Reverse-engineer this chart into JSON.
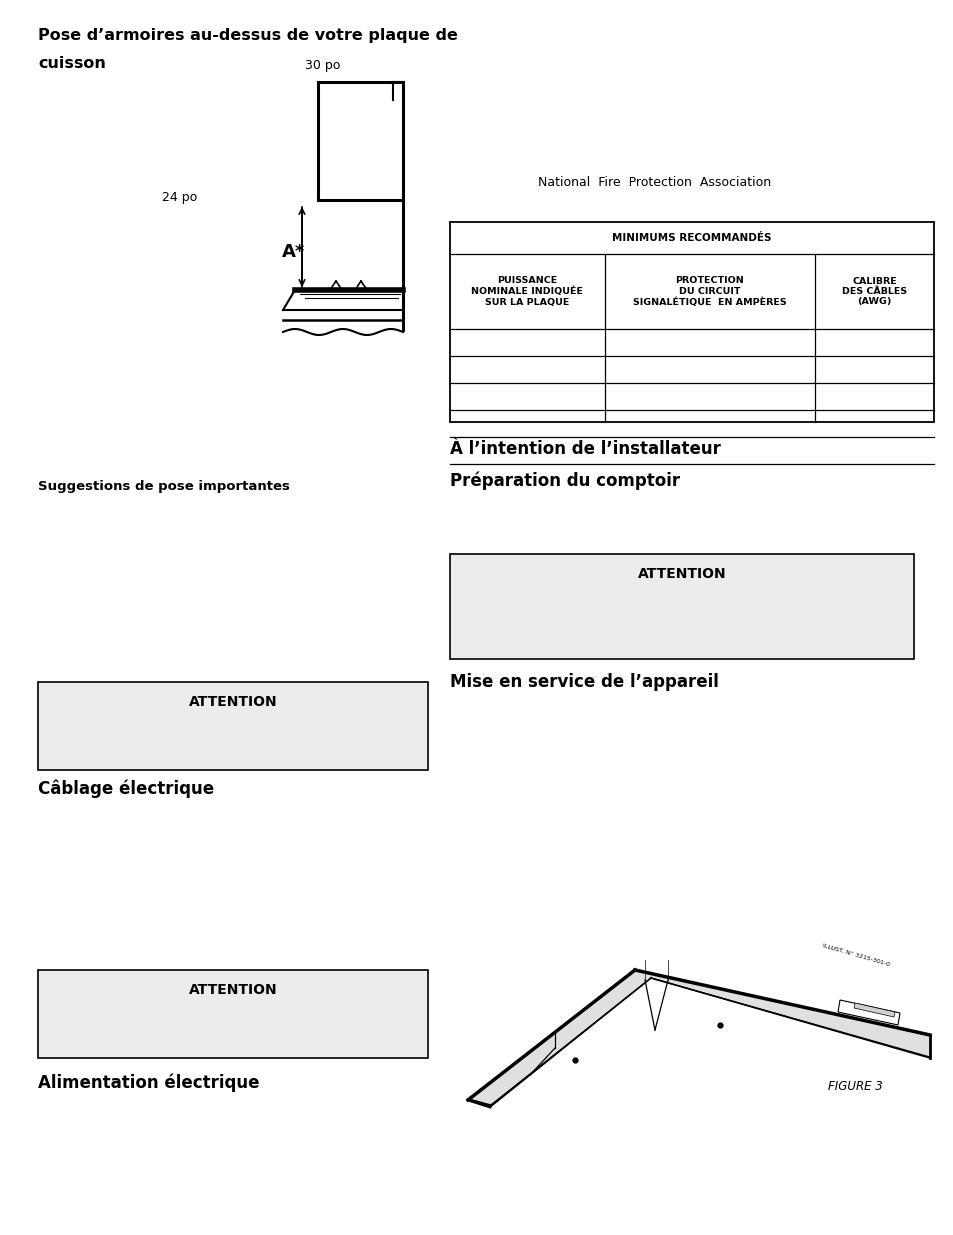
{
  "bg_color": "#ffffff",
  "page_width": 9.54,
  "page_height": 12.35,
  "dpi": 100,
  "title1": "Pose d’armoires au-dessus de votre plaque de",
  "title1b": "cuisson",
  "label_30po": "30 po",
  "label_24po": "24 po",
  "label_Astar": "A*",
  "nfpa_text": "National  Fire  Protection  Association",
  "table_header": "MINIMUMS RECOMMANDÉS",
  "col1_header": "PUISSANCE\nNOMINALE INDIQUÉE\nSUR LA PLAQUE",
  "col2_header": "PROTECTION\nDU CIRCUIT\nSIGNALÉTIQUE  EN AMPÈRES",
  "col3_header": "CALIBRE\nDES CÂBLES\n(AWG)",
  "suggestions_label": "Suggestions de pose importantes",
  "installer_title": "À l’intention de l’installateur",
  "prep_title": "Préparation du comptoir",
  "attention_text": "ATTENTION",
  "mise_en_service": "Mise en service de l’appareil",
  "cablage_label": "Câblage électrique",
  "alimentation_label": "Alimentation électrique",
  "figure_label": "FIGURE 3",
  "attention_box_color": "#ececec",
  "text_color": "#000000"
}
